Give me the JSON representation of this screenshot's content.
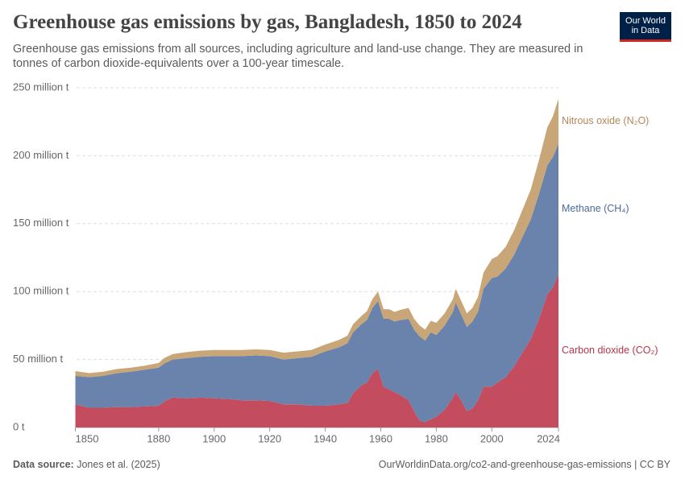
{
  "logo": [
    "Our World",
    "in Data"
  ],
  "chart_data": {
    "type": "stacked-area",
    "title": "Greenhouse gas emissions by gas, Bangladesh, 1850 to 2024",
    "subtitle": "Greenhouse gas emissions from all sources, including agriculture and land-use change. They are measured in tonnes of carbon dioxide-equivalents over a 100-year timescale.",
    "x": [
      1850,
      1855,
      1860,
      1865,
      1870,
      1875,
      1880,
      1882,
      1885,
      1890,
      1895,
      1900,
      1905,
      1910,
      1915,
      1920,
      1925,
      1930,
      1935,
      1940,
      1945,
      1948,
      1950,
      1953,
      1955,
      1957,
      1959,
      1961,
      1963,
      1965,
      1967,
      1970,
      1972,
      1974,
      1976,
      1978,
      1980,
      1983,
      1986,
      1987,
      1989,
      1991,
      1993,
      1995,
      1997,
      2000,
      2002,
      2005,
      2008,
      2011,
      2014,
      2017,
      2020,
      2022,
      2024
    ],
    "series": [
      {
        "name": "Carbon dioxide (CO₂)",
        "color": "#c34d5e",
        "label_color": "#b83349",
        "values": [
          17000000,
          14500000,
          14500000,
          15000000,
          15000000,
          15500000,
          16000000,
          19000000,
          22000000,
          21500000,
          22000000,
          21500000,
          21000000,
          20000000,
          20000000,
          19500000,
          17000000,
          17000000,
          16000000,
          16000000,
          17000000,
          18000000,
          25000000,
          31000000,
          33000000,
          40000000,
          43000000,
          30000000,
          28000000,
          26000000,
          24000000,
          20000000,
          12000000,
          5000000,
          4000000,
          6000000,
          8000000,
          13000000,
          22000000,
          26000000,
          20000000,
          12000000,
          14000000,
          20000000,
          30000000,
          30000000,
          33000000,
          37000000,
          45000000,
          55000000,
          65000000,
          80000000,
          98000000,
          103000000,
          113000000
        ]
      },
      {
        "name": "Methane (CH₄)",
        "color": "#6a83ad",
        "label_color": "#4c6a9c",
        "values": [
          21000000,
          22500000,
          23500000,
          25000000,
          26000000,
          27000000,
          28000000,
          28000000,
          28000000,
          29500000,
          30000000,
          31000000,
          31500000,
          32500000,
          33000000,
          33000000,
          33000000,
          34000000,
          36000000,
          40000000,
          42000000,
          44000000,
          45000000,
          45000000,
          46000000,
          48000000,
          50000000,
          50000000,
          52000000,
          52000000,
          55000000,
          60000000,
          60000000,
          62000000,
          60000000,
          64000000,
          60000000,
          62000000,
          63000000,
          66000000,
          63000000,
          62000000,
          64000000,
          65000000,
          72000000,
          80000000,
          78000000,
          80000000,
          82000000,
          85000000,
          88000000,
          92000000,
          95000000,
          96000000,
          96000000
        ]
      },
      {
        "name": "Nitrous oxide (N₂O)",
        "color": "#c9a677",
        "label_color": "#b5865a",
        "values": [
          3500000,
          3000000,
          3000000,
          3000000,
          3000000,
          3000000,
          3500000,
          4000000,
          4000000,
          4500000,
          4500000,
          4500000,
          4500000,
          4500000,
          4500000,
          4500000,
          5000000,
          5000000,
          5000000,
          5000000,
          5500000,
          5500000,
          6000000,
          6000000,
          6500000,
          6500000,
          7000000,
          7000000,
          7000000,
          7000000,
          7500000,
          8000000,
          8000000,
          8000000,
          8000000,
          8500000,
          9000000,
          9000000,
          9500000,
          10000000,
          10000000,
          10000000,
          10000000,
          11000000,
          12000000,
          14000000,
          15000000,
          16000000,
          18000000,
          20000000,
          22000000,
          25000000,
          28000000,
          30000000,
          33000000
        ]
      }
    ],
    "xlim": [
      1850,
      2024
    ],
    "xticks": [
      1850,
      1880,
      1900,
      1920,
      1940,
      1960,
      1980,
      2000,
      2024
    ],
    "ylim": [
      0,
      250000000
    ],
    "yticks": [
      {
        "value": 0,
        "label": "0 t"
      },
      {
        "value": 50000000,
        "label": "50 million t"
      },
      {
        "value": 100000000,
        "label": "100 million t"
      },
      {
        "value": 150000000,
        "label": "150 million t"
      },
      {
        "value": 200000000,
        "label": "200 million t"
      },
      {
        "value": 250000000,
        "label": "250 million t"
      }
    ],
    "grid": true,
    "source_label": "Data source:",
    "source": "Jones et al. (2025)",
    "url": "OurWorldinData.org/co2-and-greenhouse-gas-emissions | CC BY"
  }
}
